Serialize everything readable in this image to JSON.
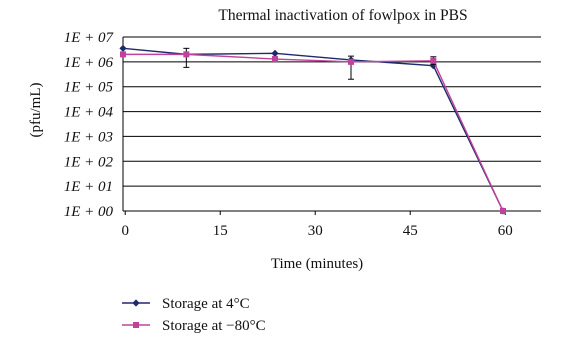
{
  "chart_data": {
    "type": "line",
    "title": "Thermal inactivation of fowlpox in PBS",
    "xlabel": "Time (minutes)",
    "ylabel": "(pfu/mL)",
    "y_scale": "log",
    "ylim": [
      "1E+00",
      "1E+07"
    ],
    "y_ticks": [
      "1E + 07",
      "1E + 06",
      "1E + 05",
      "1E + 04",
      "1E + 03",
      "1E + 02",
      "1E + 01",
      "1E + 00"
    ],
    "x_ticks": [
      "0",
      "15",
      "30",
      "45",
      "60"
    ],
    "x": [
      0,
      10,
      24,
      36,
      49,
      60
    ],
    "grid": "horizontal",
    "legend_position": "bottom",
    "series": [
      {
        "name": "Storage at 4°C",
        "color": "#1f2a6b",
        "marker": "diamond",
        "values": [
          3500000,
          2000000,
          2200000,
          1200000,
          700000,
          1
        ],
        "error": [
          null,
          [
            600000,
            3500000
          ],
          null,
          [
            200000,
            1700000
          ],
          null,
          null
        ]
      },
      {
        "name": "Storage at −80°C",
        "color": "#c0429a",
        "marker": "square",
        "values": [
          2000000,
          2000000,
          1300000,
          1000000,
          1100000,
          1
        ],
        "error": [
          null,
          null,
          null,
          null,
          [
            800000,
            1600000
          ],
          null
        ]
      }
    ]
  }
}
